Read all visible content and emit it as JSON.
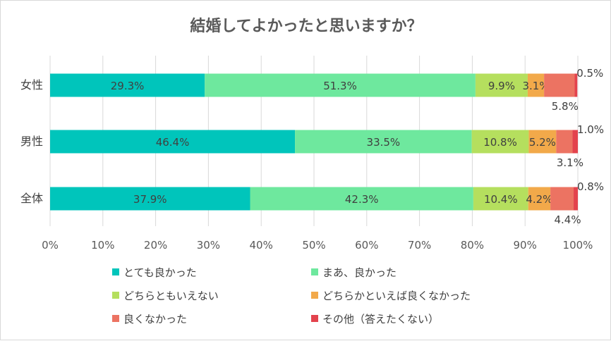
{
  "chart_data": {
    "type": "bar",
    "orientation": "horizontal",
    "stacked": true,
    "title": "結婚してよかったと思いますか？",
    "categories": [
      "女性",
      "男性",
      "全体"
    ],
    "series": [
      {
        "name": "とても良かった",
        "values": [
          29.3,
          46.4,
          37.9
        ],
        "color": "#00C5BB"
      },
      {
        "name": "まあ、良かった",
        "values": [
          51.3,
          33.5,
          42.3
        ],
        "color": "#6EE89E"
      },
      {
        "name": "どちらともいえない",
        "values": [
          9.9,
          10.8,
          10.4
        ],
        "color": "#B5DF5E"
      },
      {
        "name": "どちらかといえば良くなかった",
        "values": [
          3.1,
          5.2,
          4.2
        ],
        "color": "#F2A94A"
      },
      {
        "name": "良くなかった",
        "values": [
          5.8,
          3.1,
          4.4
        ],
        "color": "#EC7362"
      },
      {
        "name": "その他（答えたくない）",
        "values": [
          0.5,
          1.0,
          0.8
        ],
        "color": "#E3434D"
      }
    ],
    "data_labels": [
      [
        "29.3%",
        "51.3%",
        "9.9%",
        "3.1%",
        "5.8%",
        "0.5%"
      ],
      [
        "46.4%",
        "33.5%",
        "10.8%",
        "5.2%",
        "3.1%",
        "1.0%"
      ],
      [
        "37.9%",
        "42.3%",
        "10.4%",
        "4.2%",
        "4.4%",
        "0.8%"
      ]
    ],
    "xlim": [
      0,
      100
    ],
    "xticks": [
      "0%",
      "10%",
      "20%",
      "30%",
      "40%",
      "50%",
      "60%",
      "70%",
      "80%",
      "90%",
      "100%"
    ],
    "grid": true,
    "legend_position": "bottom"
  }
}
